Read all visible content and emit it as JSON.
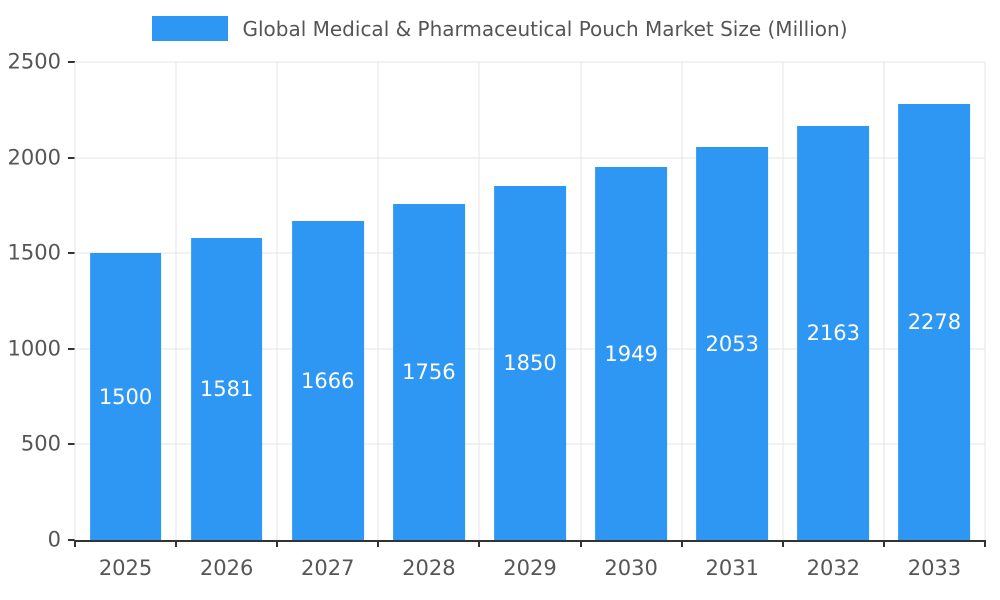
{
  "chart_data": {
    "type": "bar",
    "title": "Global Medical & Pharmaceutical Pouch Market Size (Million)",
    "categories": [
      "2025",
      "2026",
      "2027",
      "2028",
      "2029",
      "2030",
      "2031",
      "2032",
      "2033"
    ],
    "values": [
      1500,
      1581,
      1666,
      1756,
      1850,
      1949,
      2053,
      2163,
      2278
    ],
    "xlabel": "",
    "ylabel": "",
    "ylim": [
      0,
      2500
    ],
    "yticks": [
      0,
      500,
      1000,
      1500,
      2000,
      2500
    ],
    "grid": true,
    "legend_position": "top-center",
    "bar_color": "#2E96F3",
    "value_label_color": "#ffffff",
    "axis_color": "#333333",
    "gridline_color": "#e4e4e4",
    "tick_label_color": "#565656"
  }
}
